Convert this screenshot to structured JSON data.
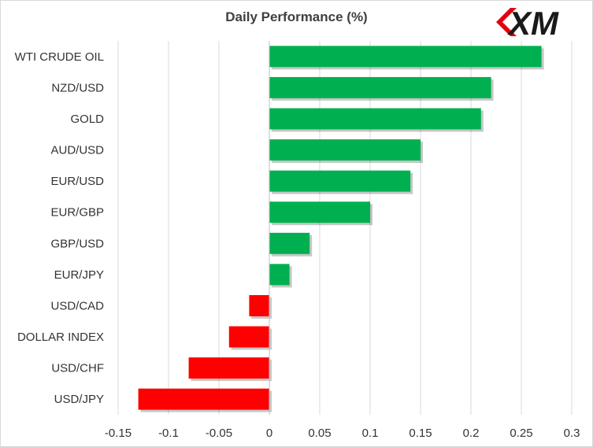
{
  "chart_data": {
    "type": "bar",
    "orientation": "horizontal",
    "title": "Daily Performance  (%)",
    "categories": [
      "WTI CRUDE OIL",
      "NZD/USD",
      "GOLD",
      "AUD/USD",
      "EUR/USD",
      "EUR/GBP",
      "GBP/USD",
      "EUR/JPY",
      "USD/CAD",
      "DOLLAR INDEX",
      "USD/CHF",
      "USD/JPY"
    ],
    "values": [
      0.27,
      0.22,
      0.21,
      0.15,
      0.14,
      0.1,
      0.04,
      0.02,
      -0.02,
      -0.04,
      -0.08,
      -0.13
    ],
    "xlim": [
      -0.15,
      0.3
    ],
    "xticks": [
      -0.15,
      -0.1,
      -0.05,
      0,
      0.05,
      0.1,
      0.15,
      0.2,
      0.25,
      0.3
    ],
    "xtick_labels": [
      "-0.15",
      "-0.1",
      "-0.05",
      "0",
      "0.05",
      "0.1",
      "0.15",
      "0.2",
      "0.25",
      "0.3"
    ],
    "grid": "vertical",
    "legend": "none",
    "colors": {
      "positive": "#00b050",
      "negative": "#ff0000",
      "gridline": "#d9d9d9",
      "axis": "#bfbfbf"
    }
  },
  "logo": {
    "text": "XM",
    "colors": {
      "mark": "#1a1a1a",
      "accent": "#e3000f"
    }
  }
}
